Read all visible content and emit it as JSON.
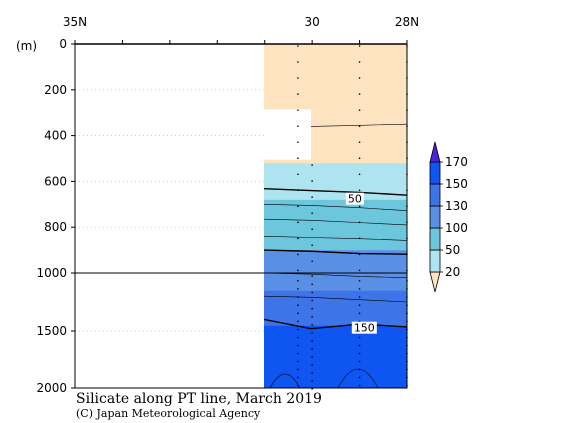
{
  "chart_data": {
    "type": "contour",
    "title": "Silicate along PT line, March 2019",
    "subtitle": "(C) Japan Meteorological Agency",
    "ylabel": "(m)",
    "x_ticks": [
      {
        "value": 35,
        "label": "35N"
      },
      {
        "value": 30,
        "label": "30"
      },
      {
        "value": 28,
        "label": "28N"
      }
    ],
    "xlim": [
      35,
      28
    ],
    "y_ticks": [
      0,
      200,
      400,
      600,
      800,
      1000,
      1500,
      2000
    ],
    "y_depth_labels": [
      "0",
      "200",
      "400",
      "600",
      "800",
      "1000",
      "1500",
      "2000"
    ],
    "ylim": [
      0,
      2000
    ],
    "y_scale": "piecewise: 0-1000 m linear, 1000-2000 m compressed",
    "colorbar": {
      "levels": [
        20,
        50,
        100,
        130,
        150,
        170
      ],
      "level_labels": [
        "20",
        "50",
        "100",
        "130",
        "150",
        "170"
      ],
      "colors": [
        "#fde3c0",
        "#aee4ef",
        "#6cc6dc",
        "#5a8fe6",
        "#3d74e8",
        "#0f55f2",
        "#4a1fe0"
      ]
    },
    "contour_labels": [
      {
        "value": 50,
        "label": "50",
        "lat": 29.1,
        "depth": 680
      },
      {
        "value": 150,
        "label": "150",
        "lat": 28.9,
        "depth": 1480
      }
    ],
    "stations_lat": [
      30.3,
      30.0,
      29.0,
      28.0
    ],
    "bands": [
      {
        "level": "<20",
        "color": "#fde3c0",
        "top_depth": 0,
        "bottom_depth": 520
      },
      {
        "level": "20-50",
        "color": "#aee4ef",
        "top_depth": 520,
        "bottom_depth": 680
      },
      {
        "level": "50-100",
        "color": "#6cc6dc",
        "top_depth": 680,
        "bottom_depth": 900
      },
      {
        "level": "100-130",
        "color": "#5a8fe6",
        "top_depth": 900,
        "bottom_depth": 1150
      },
      {
        "level": "130-150",
        "color": "#3d74e8",
        "top_depth": 1150,
        "bottom_depth": 1450
      },
      {
        "level": ">150",
        "color": "#0f55f2",
        "top_depth": 1450,
        "bottom_depth": 2000
      }
    ],
    "grid": "dotted horizontal lines at depth ticks"
  }
}
